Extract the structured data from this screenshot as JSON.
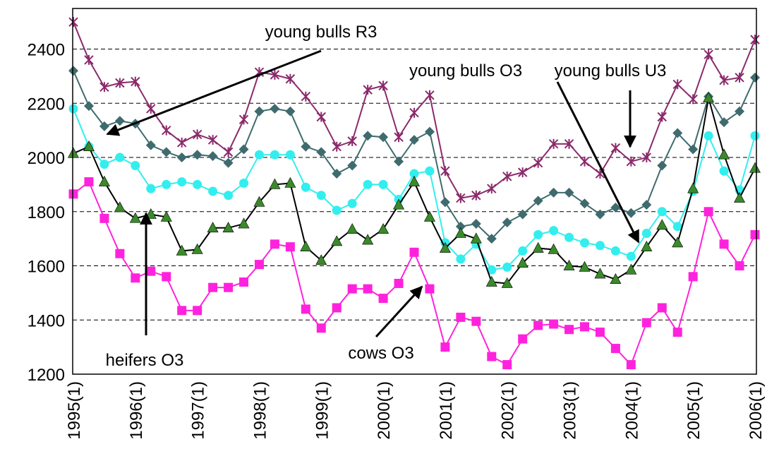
{
  "chart_data": {
    "type": "line",
    "categories": [
      "1995(1)",
      null,
      null,
      null,
      "1996(1)",
      null,
      null,
      null,
      "1997(1)",
      null,
      null,
      null,
      "1998(1)",
      null,
      null,
      null,
      "1999(1)",
      null,
      null,
      null,
      "2000(1)",
      null,
      null,
      null,
      "2001(1)",
      null,
      null,
      null,
      "2002(1)",
      null,
      null,
      null,
      "2003(1)",
      null,
      null,
      null,
      "2004(1)",
      null,
      null,
      null,
      "2005(1)",
      null,
      null,
      null,
      "2006(1)"
    ],
    "ylim": [
      1200,
      2550
    ],
    "yticks": [
      1200,
      1400,
      1600,
      1800,
      2000,
      2200,
      2400
    ],
    "grid": true,
    "series": [
      {
        "name": "young bulls R3",
        "color": "#8b2a6b",
        "marker": "asterisk",
        "values": [
          2500,
          2360,
          2260,
          2275,
          2280,
          2180,
          2100,
          2055,
          2085,
          2065,
          2020,
          2140,
          2315,
          2305,
          2290,
          2225,
          2150,
          2040,
          2060,
          2250,
          2265,
          2075,
          2165,
          2230,
          1950,
          1850,
          1860,
          1885,
          1930,
          1945,
          1980,
          2050,
          2050,
          1985,
          1940,
          2035,
          1985,
          2000,
          2150,
          2270,
          2215,
          2380,
          2285,
          2295,
          2435
        ]
      },
      {
        "name": "young bulls U3",
        "color": "#3f6b6e",
        "marker": "diamond",
        "values": [
          2320,
          2190,
          2115,
          2135,
          2125,
          2045,
          2020,
          2000,
          2010,
          2005,
          1980,
          2030,
          2170,
          2180,
          2170,
          2040,
          2020,
          1940,
          1970,
          2080,
          2075,
          1985,
          2065,
          2095,
          1835,
          1745,
          1755,
          1700,
          1760,
          1790,
          1840,
          1870,
          1870,
          1830,
          1790,
          1815,
          1795,
          1825,
          1970,
          2090,
          2030,
          2225,
          2130,
          2170,
          2295
        ]
      },
      {
        "name": "young bulls O3",
        "color": "#33eeee",
        "marker": "circle",
        "values": [
          2180,
          2040,
          1975,
          2000,
          1970,
          1885,
          1900,
          1910,
          1900,
          1875,
          1860,
          1905,
          2010,
          2010,
          2010,
          1890,
          1860,
          1805,
          1830,
          1900,
          1900,
          1845,
          1940,
          1950,
          1685,
          1625,
          1680,
          1585,
          1595,
          1655,
          1715,
          1730,
          1705,
          1685,
          1675,
          1655,
          1635,
          1720,
          1800,
          1745,
          1875,
          2080,
          1950,
          1880,
          2080
        ]
      },
      {
        "name": "heifers O3",
        "color": "#000000",
        "marker_color": "#3a8a2a",
        "marker": "triangle",
        "values": [
          2015,
          2040,
          1910,
          1815,
          1775,
          1790,
          1780,
          1655,
          1660,
          1740,
          1740,
          1755,
          1835,
          1900,
          1905,
          1670,
          1620,
          1690,
          1735,
          1695,
          1735,
          1825,
          1910,
          1780,
          1665,
          1720,
          1700,
          1540,
          1535,
          1610,
          1665,
          1660,
          1600,
          1595,
          1570,
          1550,
          1585,
          1670,
          1750,
          1685,
          1885,
          2220,
          2010,
          1850,
          1960
        ]
      },
      {
        "name": "cows O3",
        "color": "#ff22dd",
        "marker": "square",
        "values": [
          1865,
          1910,
          1775,
          1645,
          1555,
          1580,
          1560,
          1435,
          1435,
          1520,
          1520,
          1540,
          1605,
          1680,
          1670,
          1440,
          1370,
          1445,
          1515,
          1515,
          1480,
          1535,
          1650,
          1515,
          1300,
          1410,
          1395,
          1265,
          1235,
          1330,
          1380,
          1385,
          1365,
          1375,
          1355,
          1295,
          1235,
          1390,
          1445,
          1355,
          1560,
          1800,
          1680,
          1600,
          1715
        ]
      }
    ]
  }
}
